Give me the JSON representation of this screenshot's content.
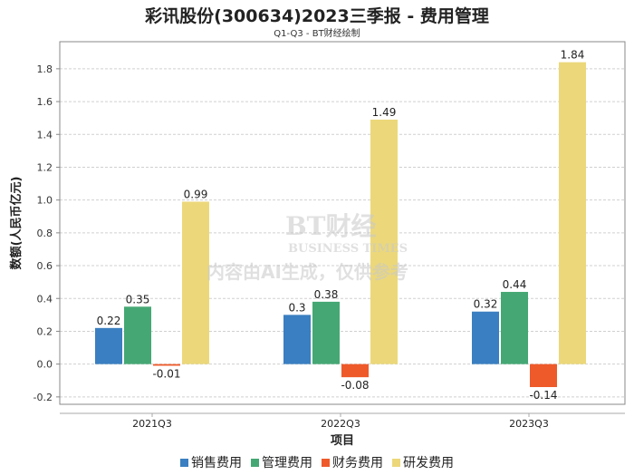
{
  "chart_data": {
    "type": "bar",
    "title": "彩讯股份(300634)2023三季报 - 费用管理",
    "subtitle": "Q1-Q3 - BT财经绘制",
    "xlabel": "项目",
    "ylabel": "数额(人民币亿元)",
    "categories": [
      "2021Q3",
      "2022Q3",
      "2023Q3"
    ],
    "series": [
      {
        "name": "销售费用",
        "color": "#3a7fc1",
        "values": [
          0.22,
          0.3,
          0.32
        ],
        "labels": [
          "0.22",
          "0.3",
          "0.32"
        ]
      },
      {
        "name": "管理费用",
        "color": "#45a874",
        "values": [
          0.35,
          0.38,
          0.44
        ],
        "labels": [
          "0.35",
          "0.38",
          "0.44"
        ]
      },
      {
        "name": "财务费用",
        "color": "#ee5a2a",
        "values": [
          -0.01,
          -0.08,
          -0.14
        ],
        "labels": [
          "-0.01",
          "-0.08",
          "-0.14"
        ]
      },
      {
        "name": "研发费用",
        "color": "#ecd87a",
        "values": [
          0.99,
          1.49,
          1.84
        ],
        "labels": [
          "0.99",
          "1.49",
          "1.84"
        ]
      }
    ],
    "yticks": [
      "-0.2",
      "0.0",
      "0.2",
      "0.4",
      "0.6",
      "0.8",
      "1.0",
      "1.2",
      "1.4",
      "1.6",
      "1.8"
    ],
    "ylim": [
      -0.245,
      1.965
    ],
    "grid": true,
    "legend": "bottom"
  },
  "watermark": {
    "brand": "BT财经",
    "brand_en": "BUSINESS TIMES",
    "notice": "内容由AI生成，仅供参考"
  }
}
